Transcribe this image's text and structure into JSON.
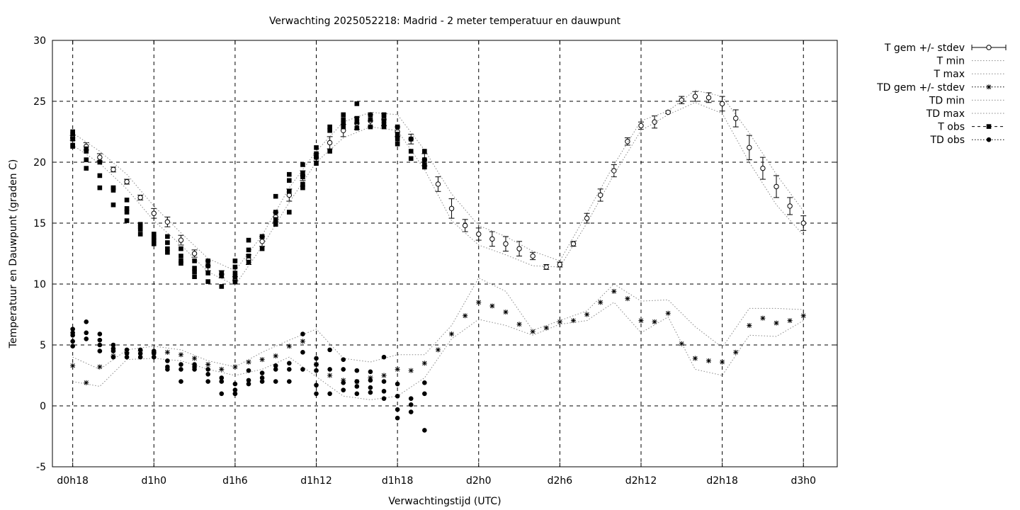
{
  "chart_data": {
    "type": "scatter",
    "title": "Verwachting 2025052218: Madrid - 2 meter temperatuur en dauwpunt",
    "xlabel": "Verwachtingstijd (UTC)",
    "ylabel": "Temperatuur en Dauwpunt (graden C)",
    "xlim": [
      -1.5,
      56.5
    ],
    "ylim": [
      -5,
      30
    ],
    "x_unit": "hours after d0h18",
    "yticks": [
      -5,
      0,
      5,
      10,
      15,
      20,
      25,
      30
    ],
    "xticks": [
      {
        "x": 0,
        "label": "d0h18"
      },
      {
        "x": 6,
        "label": "d1h0"
      },
      {
        "x": 12,
        "label": "d1h6"
      },
      {
        "x": 18,
        "label": "d1h12"
      },
      {
        "x": 24,
        "label": "d1h18"
      },
      {
        "x": 30,
        "label": "d2h0"
      },
      {
        "x": 36,
        "label": "d2h6"
      },
      {
        "x": 42,
        "label": "d2h12"
      },
      {
        "x": 48,
        "label": "d2h18"
      },
      {
        "x": 54,
        "label": "d3h0"
      }
    ],
    "grid": true,
    "legend_position": "outside-right",
    "series": [
      {
        "name": "T gem +/- stdev",
        "marker": "open-circle",
        "x": [
          0,
          1,
          2,
          3,
          4,
          5,
          6,
          7,
          8,
          9,
          10,
          11,
          12,
          13,
          14,
          15,
          16,
          17,
          18,
          19,
          20,
          21,
          22,
          23,
          24,
          25,
          26,
          27,
          28,
          29,
          30,
          31,
          32,
          33,
          34,
          35,
          36,
          37,
          38,
          39,
          40,
          41,
          42,
          43,
          44,
          45,
          46,
          47,
          48,
          49,
          50,
          51,
          52,
          53,
          54
        ],
        "y": [
          22.0,
          21.3,
          20.4,
          19.4,
          18.4,
          17.1,
          15.8,
          15.1,
          13.6,
          12.5,
          11.5,
          10.8,
          10.3,
          12.0,
          13.5,
          15.5,
          17.3,
          18.9,
          20.4,
          21.6,
          22.6,
          23.2,
          23.4,
          23.5,
          22.5,
          21.9,
          20.2,
          18.2,
          16.2,
          14.8,
          14.1,
          13.7,
          13.3,
          12.9,
          12.3,
          11.4,
          11.6,
          13.3,
          15.4,
          17.3,
          19.3,
          21.7,
          23.0,
          23.3,
          24.1,
          25.1,
          25.4,
          25.3,
          24.8,
          23.6,
          21.2,
          19.5,
          18.0,
          16.4,
          15.0
        ],
        "stdev": [
          0.2,
          0.3,
          0.3,
          0.2,
          0.2,
          0.2,
          0.4,
          0.4,
          0.4,
          0.3,
          0.4,
          0.3,
          0.3,
          0.4,
          0.4,
          0.4,
          0.5,
          0.4,
          0.3,
          0.5,
          0.5,
          0.5,
          0.5,
          0.5,
          0.4,
          0.4,
          0.5,
          0.6,
          0.8,
          0.5,
          0.5,
          0.6,
          0.6,
          0.6,
          0.3,
          0.2,
          0.2,
          0.2,
          0.4,
          0.5,
          0.5,
          0.3,
          0.3,
          0.5,
          0.1,
          0.3,
          0.4,
          0.4,
          0.6,
          0.7,
          1.0,
          0.9,
          0.9,
          0.7,
          0.6
        ]
      },
      {
        "name": "T min",
        "style": "dotted",
        "x": [
          0,
          2,
          4,
          6,
          8,
          10,
          12,
          14,
          16,
          18,
          20,
          22,
          24,
          26,
          28,
          30,
          32,
          34,
          36,
          38,
          40,
          42,
          44,
          46,
          48,
          50,
          52,
          54
        ],
        "y": [
          21.4,
          19.9,
          17.8,
          15.2,
          13.2,
          11.0,
          9.9,
          13.1,
          16.7,
          20.0,
          22.0,
          22.9,
          22.6,
          19.4,
          15.2,
          13.2,
          12.4,
          11.5,
          11.4,
          15.0,
          19.0,
          22.6,
          23.9,
          24.9,
          24.0,
          20.0,
          16.5,
          14.0
        ]
      },
      {
        "name": "T max",
        "style": "dotted",
        "x": [
          0,
          2,
          4,
          6,
          8,
          10,
          12,
          14,
          16,
          18,
          20,
          22,
          24,
          26,
          28,
          30,
          32,
          34,
          36,
          38,
          40,
          42,
          44,
          46,
          48,
          50,
          52,
          54
        ],
        "y": [
          22.4,
          20.9,
          19.0,
          16.4,
          14.2,
          12.1,
          11.1,
          14.0,
          17.9,
          20.9,
          23.3,
          24.1,
          23.9,
          21.0,
          17.4,
          14.8,
          13.9,
          12.7,
          11.9,
          15.8,
          19.8,
          23.4,
          24.2,
          25.9,
          25.4,
          22.4,
          19.0,
          16.0
        ]
      },
      {
        "name": "TD gem +/- stdev",
        "marker": "asterisk",
        "x": [
          0,
          1,
          2,
          3,
          4,
          5,
          6,
          7,
          8,
          9,
          10,
          11,
          12,
          13,
          14,
          15,
          16,
          17,
          18,
          19,
          20,
          21,
          22,
          23,
          24,
          25,
          26,
          27,
          28,
          29,
          30,
          31,
          32,
          33,
          34,
          35,
          36,
          37,
          38,
          39,
          40,
          41,
          42,
          43,
          44,
          45,
          46,
          47,
          48,
          49,
          50,
          51,
          52,
          53,
          54
        ],
        "y": [
          3.3,
          1.9,
          3.2,
          4.1,
          4.4,
          4.5,
          4.4,
          4.4,
          4.2,
          3.9,
          3.4,
          3.0,
          3.2,
          3.6,
          3.8,
          4.1,
          4.9,
          5.3,
          3.4,
          2.5,
          2.1,
          2.0,
          2.3,
          2.5,
          3.0,
          2.9,
          3.5,
          4.6,
          5.9,
          7.4,
          8.5,
          8.2,
          7.7,
          6.7,
          6.1,
          6.4,
          6.9,
          7.0,
          7.5,
          8.5,
          9.4,
          8.8,
          7.0,
          6.9,
          7.6,
          5.1,
          3.9,
          3.7,
          3.6,
          4.4,
          6.6,
          7.2,
          6.8,
          7.0,
          7.4
        ]
      },
      {
        "name": "TD min",
        "style": "dotted",
        "x": [
          0,
          2,
          4,
          6,
          8,
          10,
          12,
          14,
          16,
          18,
          20,
          22,
          24,
          26,
          28,
          30,
          32,
          34,
          36,
          38,
          40,
          42,
          44,
          46,
          48,
          50,
          52,
          54
        ],
        "y": [
          2.0,
          1.6,
          3.8,
          3.9,
          3.7,
          3.0,
          2.5,
          3.0,
          4.0,
          2.4,
          0.8,
          0.5,
          0.8,
          2.3,
          5.5,
          7.1,
          6.6,
          5.8,
          6.7,
          7.0,
          8.5,
          6.0,
          7.3,
          3.0,
          2.5,
          5.8,
          5.7,
          7.0
        ]
      },
      {
        "name": "TD max",
        "style": "dotted",
        "x": [
          0,
          2,
          4,
          6,
          8,
          10,
          12,
          14,
          16,
          18,
          20,
          22,
          24,
          26,
          28,
          30,
          32,
          34,
          36,
          38,
          40,
          42,
          44,
          46,
          48,
          50,
          52,
          54
        ],
        "y": [
          4.0,
          3.0,
          4.6,
          4.9,
          4.6,
          3.7,
          3.2,
          4.4,
          5.4,
          6.3,
          3.9,
          3.6,
          4.2,
          4.2,
          6.6,
          10.5,
          9.4,
          6.2,
          7.0,
          7.8,
          10.0,
          8.6,
          8.7,
          6.5,
          4.8,
          8.0,
          8.0,
          7.9
        ]
      },
      {
        "name": "T obs",
        "marker": "filled-square",
        "x": [
          0,
          0,
          0,
          0,
          0,
          1,
          1,
          1,
          1,
          2,
          2,
          2,
          3,
          3,
          3,
          3,
          4,
          4,
          4,
          4,
          5,
          5,
          5,
          5,
          6,
          6,
          6,
          6,
          7,
          7,
          7,
          7,
          8,
          8,
          8,
          8,
          9,
          9,
          9,
          9,
          10,
          10,
          10,
          10,
          11,
          11,
          11,
          12,
          12,
          12,
          12,
          12,
          13,
          13,
          13,
          13,
          14,
          14,
          14,
          15,
          15,
          15,
          15,
          16,
          16,
          16,
          16,
          17,
          17,
          17,
          17,
          17,
          18,
          18,
          18,
          18,
          19,
          19,
          19,
          20,
          20,
          20,
          20,
          21,
          21,
          21,
          21,
          22,
          22,
          22,
          23,
          23,
          23,
          23,
          23,
          24,
          24,
          24,
          24,
          25,
          25,
          25,
          26,
          26,
          26,
          26
        ],
        "y": [
          21.3,
          21.4,
          21.9,
          22.3,
          22.5,
          19.5,
          20.2,
          20.9,
          21.1,
          17.9,
          18.9,
          20.0,
          16.5,
          17.7,
          17.9,
          17.9,
          15.2,
          15.9,
          16.2,
          16.9,
          14.1,
          14.5,
          14.7,
          14.9,
          13.3,
          13.6,
          13.8,
          14.1,
          12.6,
          12.9,
          13.4,
          13.9,
          11.7,
          11.9,
          12.3,
          12.9,
          10.6,
          11.0,
          11.3,
          11.9,
          10.2,
          10.9,
          11.5,
          11.9,
          9.8,
          10.7,
          10.9,
          10.2,
          10.6,
          10.9,
          11.4,
          11.9,
          11.8,
          12.3,
          12.8,
          13.6,
          12.9,
          13.9,
          13.9,
          14.9,
          15.3,
          15.9,
          17.2,
          15.9,
          17.6,
          18.5,
          19.0,
          17.9,
          18.2,
          18.8,
          19.1,
          19.8,
          19.9,
          20.4,
          20.7,
          21.2,
          20.9,
          22.6,
          22.9,
          22.9,
          23.2,
          23.5,
          23.9,
          22.8,
          23.3,
          23.6,
          24.8,
          22.9,
          23.5,
          23.9,
          22.9,
          23.1,
          23.4,
          23.8,
          23.9,
          21.5,
          21.9,
          22.3,
          22.9,
          20.3,
          20.9,
          21.9,
          19.6,
          19.8,
          20.2,
          20.9
        ]
      },
      {
        "name": "TD obs",
        "marker": "filled-circle",
        "x": [
          0,
          0,
          0,
          0,
          0,
          1,
          1,
          1,
          2,
          2,
          2,
          2,
          3,
          3,
          3,
          3,
          4,
          4,
          4,
          5,
          5,
          5,
          6,
          6,
          6,
          7,
          7,
          7,
          8,
          8,
          8,
          9,
          9,
          9,
          10,
          10,
          10,
          11,
          11,
          11,
          12,
          12,
          12,
          12,
          13,
          13,
          13,
          14,
          14,
          14,
          15,
          15,
          15,
          16,
          16,
          16,
          17,
          17,
          17,
          18,
          18,
          18,
          18,
          18,
          19,
          19,
          19,
          20,
          20,
          20,
          20,
          21,
          21,
          21,
          21,
          22,
          22,
          22,
          22,
          23,
          23,
          23,
          23,
          24,
          24,
          24,
          24,
          25,
          25,
          25,
          26,
          26,
          26
        ],
        "y": [
          4.9,
          5.3,
          5.8,
          6.0,
          6.3,
          5.5,
          6.0,
          6.9,
          4.5,
          5.0,
          5.4,
          5.9,
          4.0,
          4.5,
          4.7,
          5.0,
          4.0,
          4.3,
          4.6,
          4.0,
          4.3,
          4.6,
          4.0,
          4.3,
          4.5,
          3.0,
          3.2,
          3.7,
          2.0,
          3.0,
          3.4,
          3.0,
          3.2,
          3.4,
          2.0,
          2.6,
          3.0,
          1.0,
          2.0,
          2.3,
          1.0,
          1.3,
          1.8,
          1.0,
          1.8,
          2.1,
          2.9,
          2.0,
          2.3,
          2.7,
          2.0,
          3.0,
          3.3,
          2.0,
          3.0,
          3.5,
          3.0,
          4.4,
          5.9,
          1.0,
          1.7,
          2.9,
          3.4,
          3.9,
          1.0,
          3.0,
          4.6,
          1.3,
          1.9,
          3.0,
          3.8,
          1.0,
          1.6,
          2.0,
          2.9,
          1.1,
          1.5,
          2.1,
          2.8,
          0.6,
          1.2,
          2.0,
          4.0,
          -1.0,
          -0.3,
          0.8,
          1.8,
          -0.5,
          0.1,
          0.6,
          -2.0,
          1.0,
          1.9
        ]
      }
    ]
  }
}
